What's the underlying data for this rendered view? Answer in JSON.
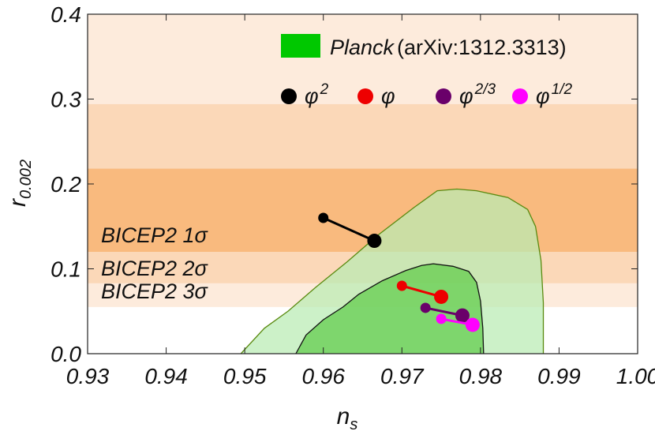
{
  "chart_data": {
    "type": "scatter",
    "title": "",
    "xlabel": "n",
    "xlabel_sub": "s",
    "ylabel": "r",
    "ylabel_sub": "0.002",
    "xlim": [
      0.93,
      1.0
    ],
    "ylim": [
      0.0,
      0.4
    ],
    "x_ticks": [
      0.93,
      0.94,
      0.95,
      0.96,
      0.97,
      0.98,
      0.99,
      1.0
    ],
    "x_tick_labels": [
      "0.93",
      "0.94",
      "0.95",
      "0.96",
      "0.97",
      "0.98",
      "0.99",
      "1.00"
    ],
    "y_ticks": [
      0.0,
      0.1,
      0.2,
      0.3,
      0.4
    ],
    "y_tick_labels": [
      "0.0",
      "0.1",
      "0.2",
      "0.3",
      "0.4"
    ],
    "bicep2_bands": [
      {
        "name": "BICEP2 3σ",
        "label": "BICEP2 3σ",
        "y_low": 0.055,
        "y_high": 0.4,
        "color": "#fdebdc",
        "label_y": 0.065
      },
      {
        "name": "BICEP2 2σ",
        "label": "BICEP2 2σ",
        "y_low": 0.083,
        "y_high": 0.294,
        "color": "#fbd8b8",
        "label_y": 0.092
      },
      {
        "name": "BICEP2 1σ",
        "label": "BICEP2 1σ",
        "y_low": 0.12,
        "y_high": 0.218,
        "color": "#f9ba7e",
        "label_y": 0.131
      }
    ],
    "planck_contours": {
      "label": "Planck",
      "reference": "(arXiv:1312.3313)",
      "legend_color": "#00c800",
      "outer": {
        "fill": "#b9ebb3",
        "stroke": "#5a8a10",
        "points": [
          [
            0.9495,
            0.0
          ],
          [
            0.9525,
            0.03
          ],
          [
            0.9555,
            0.05
          ],
          [
            0.959,
            0.078
          ],
          [
            0.963,
            0.108
          ],
          [
            0.967,
            0.14
          ],
          [
            0.9715,
            0.172
          ],
          [
            0.9745,
            0.192
          ],
          [
            0.977,
            0.194
          ],
          [
            0.9795,
            0.192
          ],
          [
            0.9835,
            0.184
          ],
          [
            0.986,
            0.17
          ],
          [
            0.987,
            0.15
          ],
          [
            0.9877,
            0.11
          ],
          [
            0.988,
            0.06
          ],
          [
            0.988,
            0.0
          ]
        ]
      },
      "inner": {
        "fill": "#5fcc4a",
        "stroke": "#111111",
        "points": [
          [
            0.9565,
            0.0
          ],
          [
            0.9578,
            0.022
          ],
          [
            0.96,
            0.04
          ],
          [
            0.9625,
            0.055
          ],
          [
            0.9645,
            0.07
          ],
          [
            0.9675,
            0.086
          ],
          [
            0.9705,
            0.098
          ],
          [
            0.9725,
            0.104
          ],
          [
            0.974,
            0.106
          ],
          [
            0.9765,
            0.103
          ],
          [
            0.9785,
            0.097
          ],
          [
            0.9795,
            0.084
          ],
          [
            0.98,
            0.062
          ],
          [
            0.9803,
            0.03
          ],
          [
            0.9804,
            0.0
          ]
        ]
      }
    },
    "series": [
      {
        "name": "φ^2",
        "label_base": "φ",
        "label_exp": "2",
        "color": "#000000",
        "points": [
          [
            0.96,
            0.16
          ],
          [
            0.9665,
            0.133
          ]
        ]
      },
      {
        "name": "φ",
        "label_base": "φ",
        "label_exp": "",
        "color": "#ee0000",
        "points": [
          [
            0.97,
            0.08
          ],
          [
            0.975,
            0.067
          ]
        ]
      },
      {
        "name": "φ^2/3",
        "label_base": "φ",
        "label_exp": "2/3",
        "color": "#6a006a",
        "points": [
          [
            0.973,
            0.054
          ],
          [
            0.9777,
            0.045
          ]
        ]
      },
      {
        "name": "φ^1/2",
        "label_base": "φ",
        "label_exp": "1/2",
        "color": "#ff00ff",
        "points": [
          [
            0.975,
            0.041
          ],
          [
            0.979,
            0.034
          ]
        ]
      }
    ]
  }
}
